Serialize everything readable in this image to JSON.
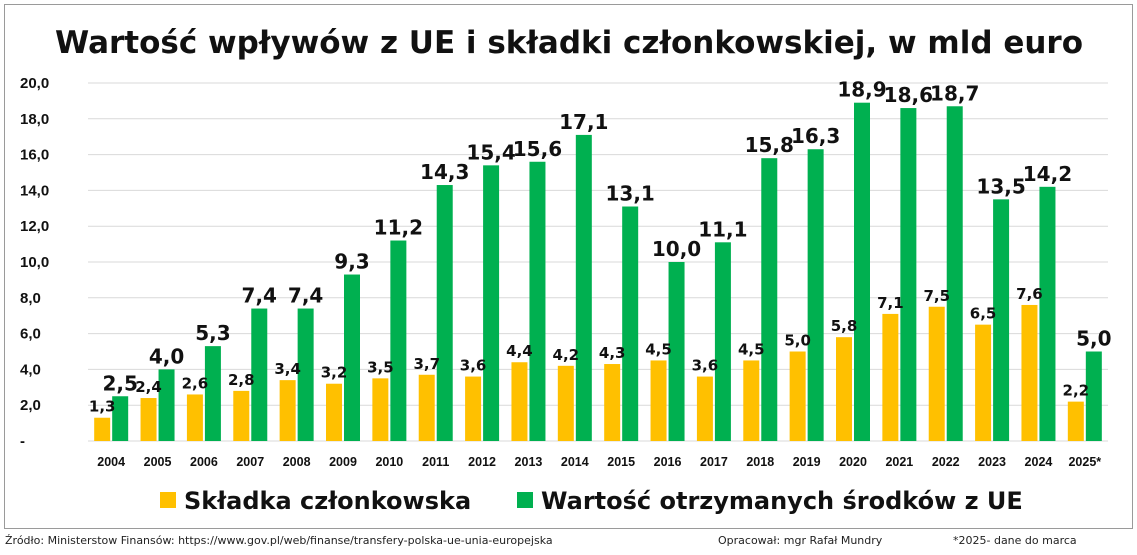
{
  "chart_data": {
    "type": "bar",
    "title": "Wartość wpływów z UE i składki członkowskiej, w mld euro",
    "categories": [
      "2004",
      "2005",
      "2006",
      "2007",
      "2008",
      "2009",
      "2010",
      "2011",
      "2012",
      "2013",
      "2014",
      "2015",
      "2016",
      "2017",
      "2018",
      "2019",
      "2020",
      "2021",
      "2022",
      "2023",
      "2024",
      "2025*"
    ],
    "series": [
      {
        "name": "Składka członkowska",
        "color": "#FFC000",
        "values": [
          1.3,
          2.4,
          2.6,
          2.8,
          3.4,
          3.2,
          3.5,
          3.7,
          3.6,
          4.4,
          4.2,
          4.3,
          4.5,
          3.6,
          4.5,
          5.0,
          5.8,
          7.1,
          7.5,
          6.5,
          7.6,
          2.2
        ],
        "labels": [
          "1,3",
          "2,4",
          "2,6",
          "2,8",
          "3,4",
          "3,2",
          "3,5",
          "3,7",
          "3,6",
          "4,4",
          "4,2",
          "4,3",
          "4,5",
          "3,6",
          "4,5",
          "5,0",
          "5,8",
          "7,1",
          "7,5",
          "6,5",
          "7,6",
          "2,2"
        ]
      },
      {
        "name": "Wartość otrzymanych środków z UE",
        "color": "#00B050",
        "values": [
          2.5,
          4.0,
          5.3,
          7.4,
          7.4,
          9.3,
          11.2,
          14.3,
          15.4,
          15.6,
          17.1,
          13.1,
          10.0,
          11.1,
          15.8,
          16.3,
          18.9,
          18.6,
          18.7,
          13.5,
          14.2,
          5.0
        ],
        "labels": [
          "2,5",
          "4,0",
          "5,3",
          "7,4",
          "7,4",
          "9,3",
          "11,2",
          "14,3",
          "15,4",
          "15,6",
          "17,1",
          "13,1",
          "10,0",
          "11,1",
          "15,8",
          "16,3",
          "18,9",
          "18,6",
          "18,7",
          "13,5",
          "14,2",
          "5,0"
        ]
      }
    ],
    "ylim": [
      0,
      20
    ],
    "yticks": [
      0,
      2,
      4,
      6,
      8,
      10,
      12,
      14,
      16,
      18,
      20
    ],
    "ytick_labels": [
      "-",
      "2,0",
      "4,0",
      "6,0",
      "8,0",
      "10,0",
      "12,0",
      "14,0",
      "16,0",
      "18,0",
      "20,0"
    ],
    "grid": true,
    "legend_position": "bottom"
  },
  "footer": {
    "source": "Źródło: Ministerstow Finansów: https://www.gov.pl/web/finanse/transfery-polska-ue-unia-europejska",
    "author": "Opracował: mgr Rafał Mundry",
    "note": "*2025- dane do marca"
  }
}
